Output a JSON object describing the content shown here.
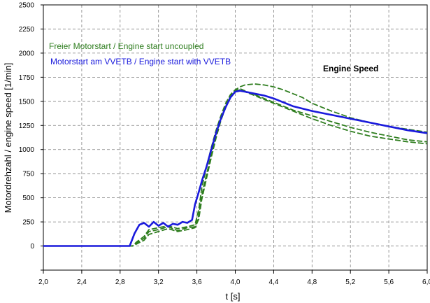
{
  "chart_data": {
    "type": "line",
    "title": "",
    "xlabel": "t [s]",
    "ylabel": "Motordrehzahl /  engine speed [1/min]",
    "xlim": [
      2.0,
      6.0
    ],
    "ylim": [
      -250,
      2500
    ],
    "x_ticks": [
      "2,0",
      "2,4",
      "2,8",
      "3,2",
      "3,6",
      "4,0",
      "4,4",
      "4,8",
      "5,2",
      "5,6",
      "6,0"
    ],
    "y_ticks": [
      "2500",
      "2250",
      "2000",
      "1750",
      "1500",
      "1250",
      "1000",
      "750",
      "500",
      "250",
      "0"
    ],
    "y_tick_values": [
      2500,
      2250,
      2000,
      1750,
      1500,
      1250,
      1000,
      750,
      500,
      250,
      0
    ],
    "grid": true,
    "legend": [
      {
        "text": "Freier Motorstart / Engine start uncoupled",
        "color": "#2e7d1e"
      },
      {
        "text": "Motorstart am VVETB / Engine start with VVETB",
        "color": "#1a1adc"
      }
    ],
    "annotation": "Engine Speed",
    "series": [
      {
        "color": "#2e7d1e",
        "dashed": true,
        "x": [
          2.0,
          2.93,
          2.97,
          3.05,
          3.1,
          3.2,
          3.3,
          3.4,
          3.5,
          3.58,
          3.62,
          3.65,
          3.7,
          3.75,
          3.8,
          3.85,
          3.9,
          3.95,
          4.0,
          4.05,
          4.1,
          4.2,
          4.3,
          4.4,
          4.5,
          4.6,
          4.7,
          4.8,
          5.0,
          5.2,
          5.4,
          5.6,
          5.8,
          6.0
        ],
        "y": [
          0,
          0,
          40,
          100,
          170,
          190,
          210,
          180,
          200,
          220,
          380,
          600,
          820,
          1020,
          1200,
          1350,
          1480,
          1570,
          1620,
          1650,
          1670,
          1680,
          1670,
          1650,
          1620,
          1580,
          1540,
          1480,
          1400,
          1330,
          1280,
          1240,
          1210,
          1180
        ]
      },
      {
        "color": "#2e7d1e",
        "dashed": true,
        "x": [
          2.0,
          2.93,
          2.97,
          3.05,
          3.1,
          3.2,
          3.3,
          3.4,
          3.5,
          3.58,
          3.62,
          3.65,
          3.7,
          3.75,
          3.8,
          3.85,
          3.9,
          3.95,
          4.0,
          4.05,
          4.1,
          4.2,
          4.3,
          4.4,
          4.5,
          4.6,
          4.7,
          4.8,
          5.0,
          5.2,
          5.4,
          5.6,
          5.8,
          6.0
        ],
        "y": [
          0,
          0,
          30,
          80,
          150,
          170,
          200,
          160,
          190,
          200,
          320,
          520,
          740,
          950,
          1150,
          1320,
          1450,
          1560,
          1610,
          1630,
          1610,
          1570,
          1530,
          1490,
          1450,
          1410,
          1380,
          1350,
          1290,
          1230,
          1180,
          1140,
          1100,
          1080
        ]
      },
      {
        "color": "#2e7d1e",
        "dashed": true,
        "x": [
          2.0,
          2.93,
          2.97,
          3.05,
          3.1,
          3.2,
          3.3,
          3.4,
          3.5,
          3.58,
          3.62,
          3.65,
          3.7,
          3.75,
          3.8,
          3.85,
          3.9,
          3.95,
          4.0,
          4.05,
          4.1,
          4.2,
          4.3,
          4.4,
          4.5,
          4.6,
          4.7,
          4.8,
          5.0,
          5.2,
          5.4,
          5.6,
          5.8,
          6.0
        ],
        "y": [
          0,
          0,
          20,
          60,
          120,
          150,
          180,
          150,
          170,
          190,
          280,
          480,
          700,
          920,
          1120,
          1300,
          1440,
          1550,
          1600,
          1620,
          1600,
          1560,
          1520,
          1480,
          1440,
          1400,
          1360,
          1320,
          1250,
          1190,
          1140,
          1110,
          1080,
          1060
        ]
      },
      {
        "color": "#1a1adc",
        "dashed": false,
        "x": [
          2.0,
          2.9,
          2.95,
          3.0,
          3.05,
          3.1,
          3.15,
          3.2,
          3.25,
          3.3,
          3.35,
          3.4,
          3.45,
          3.5,
          3.55,
          3.58,
          3.62,
          3.66,
          3.7,
          3.75,
          3.8,
          3.85,
          3.9,
          3.95,
          4.0,
          4.05,
          4.1,
          4.2,
          4.3,
          4.4,
          4.5,
          4.6,
          4.8,
          5.0,
          5.2,
          5.4,
          5.6,
          5.8,
          6.0
        ],
        "y": [
          0,
          0,
          130,
          220,
          240,
          200,
          250,
          210,
          240,
          200,
          230,
          220,
          250,
          240,
          270,
          430,
          560,
          700,
          820,
          1000,
          1170,
          1320,
          1440,
          1540,
          1600,
          1610,
          1600,
          1580,
          1560,
          1530,
          1490,
          1450,
          1400,
          1360,
          1320,
          1280,
          1240,
          1200,
          1170
        ]
      }
    ]
  }
}
